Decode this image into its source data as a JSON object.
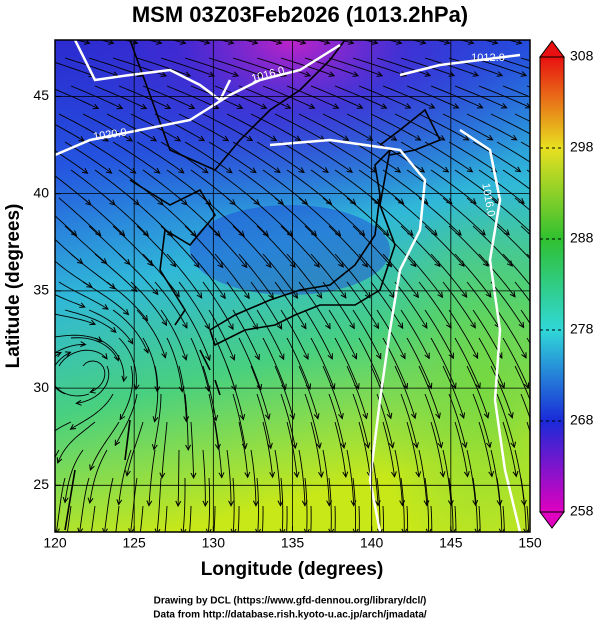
{
  "chart_data": {
    "type": "map",
    "title": "MSM 03Z03Feb2026 (1013.2hPa)",
    "xlabel": "Longitude (degrees)",
    "ylabel": "Latitude  (degrees)",
    "xlim": [
      120,
      150
    ],
    "ylim": [
      22.6,
      47.9
    ],
    "xticks": [
      120,
      125,
      130,
      135,
      140,
      145,
      150
    ],
    "yticks": [
      25,
      30,
      35,
      40,
      45
    ],
    "grid": true,
    "colorbar": {
      "lim": [
        258,
        308
      ],
      "ticks": [
        258,
        268,
        278,
        288,
        298,
        308
      ],
      "colors": [
        "#e000c0",
        "#1a2ad8",
        "#30d8d8",
        "#30c030",
        "#e8e020",
        "#e81010"
      ]
    },
    "contour_labels": [
      "1020.0",
      "1016.0",
      "1012.0",
      "1016.0"
    ],
    "credits": [
      "Drawing by DCL (https://www.gfd-dennou.org/library/dcl/)",
      "Data from http://database.rish.kyoto-u.ac.jp/arch/jmadata/"
    ]
  }
}
